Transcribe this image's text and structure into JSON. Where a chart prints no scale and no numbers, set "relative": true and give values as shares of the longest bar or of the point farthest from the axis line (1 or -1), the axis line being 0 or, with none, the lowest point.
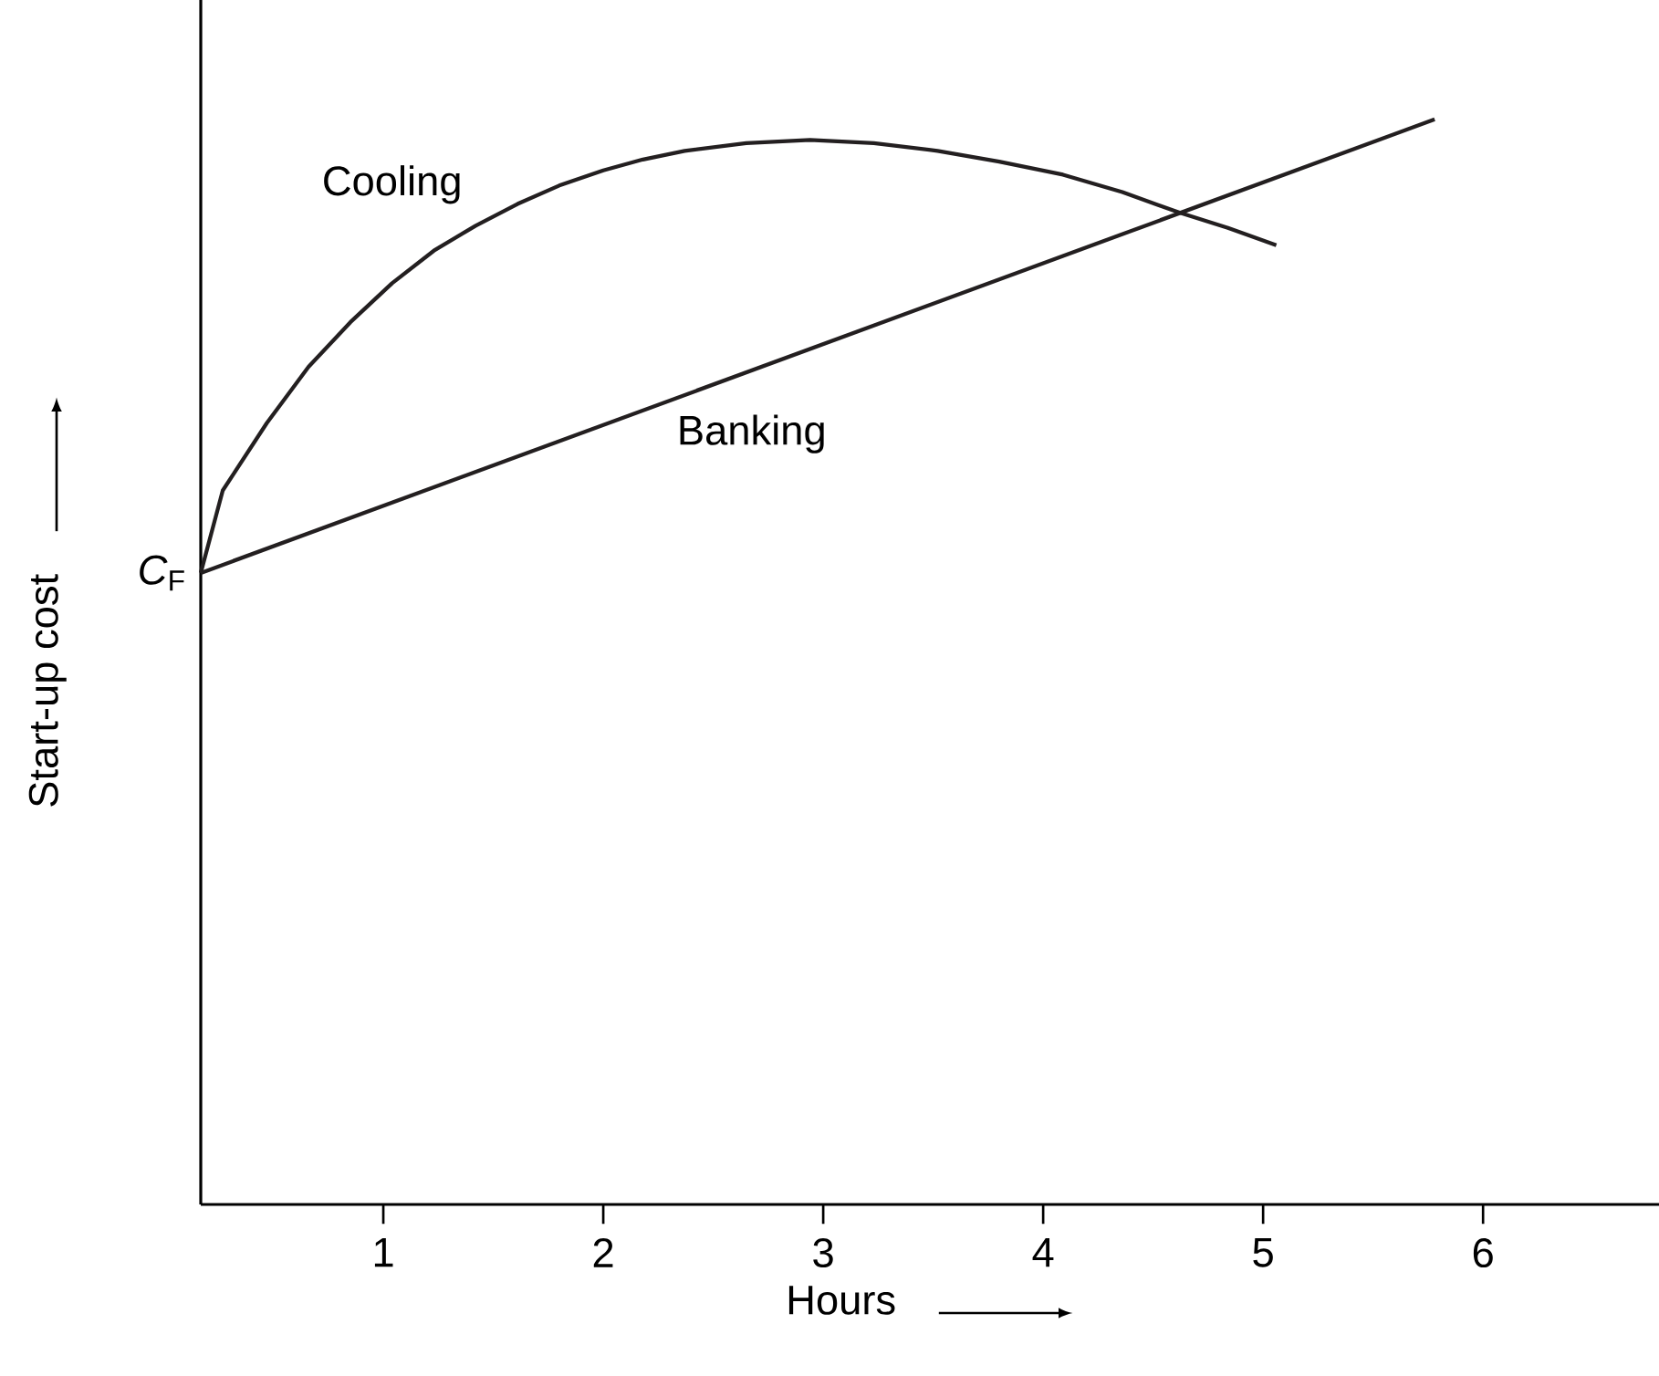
{
  "chart_data": {
    "type": "line",
    "xlabel": "Hours",
    "ylabel": "Start-up cost",
    "relative": true,
    "xlim": [
      0.17,
      6.8
    ],
    "xticks": [
      1,
      2,
      3,
      4,
      5,
      6
    ],
    "grid": false,
    "marker": "none",
    "line_style": "solid",
    "series": [
      {
        "name": "Cooling",
        "color": "#231f20",
        "x": [
          0.17,
          0.27,
          0.47,
          0.66,
          0.85,
          1.04,
          1.23,
          1.42,
          1.61,
          1.8,
          2.0,
          2.18,
          2.37,
          2.65,
          2.94,
          3.23,
          3.52,
          3.8,
          4.09,
          4.36,
          4.62,
          4.84,
          5.06
        ],
        "values": [
          0.582,
          0.658,
          0.72,
          0.772,
          0.813,
          0.849,
          0.879,
          0.902,
          0.922,
          0.939,
          0.953,
          0.963,
          0.971,
          0.978,
          0.981,
          0.978,
          0.971,
          0.961,
          0.949,
          0.933,
          0.914,
          0.9,
          0.884
        ]
      },
      {
        "name": "Banking",
        "color": "#231f20",
        "x": [
          0.17,
          5.78
        ],
        "values": [
          0.582,
          1.0
        ]
      }
    ],
    "annotations": [
      {
        "text": "*C*$_{F}$",
        "x": 0.17,
        "y": 0.582
      }
    ]
  }
}
